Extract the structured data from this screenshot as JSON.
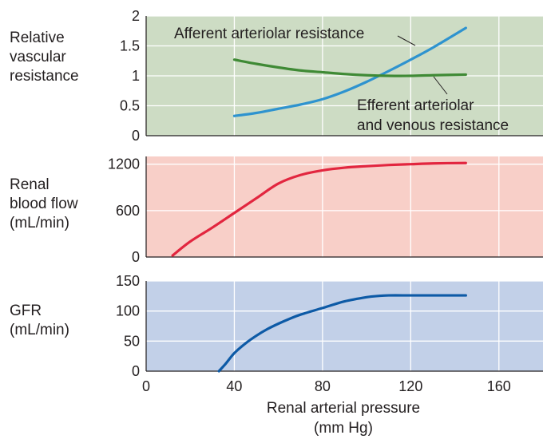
{
  "chart_data": [
    {
      "type": "line",
      "ylabel": [
        "Relative",
        "vascular",
        "resistance"
      ],
      "ylim": [
        0,
        2
      ],
      "yticks": [
        "0",
        "0.5",
        "1",
        "1.5",
        "2"
      ],
      "xlim": [
        0,
        180
      ],
      "background": "#cddcc4",
      "grid": true,
      "series": [
        {
          "name": "Afferent arteriolar resistance",
          "color": "#2e93cf",
          "x": [
            40,
            50,
            60,
            70,
            80,
            90,
            100,
            110,
            120,
            130,
            145
          ],
          "y": [
            0.33,
            0.38,
            0.45,
            0.52,
            0.61,
            0.74,
            0.9,
            1.08,
            1.27,
            1.47,
            1.8
          ]
        },
        {
          "name": "Efferent arteriolar and venous resistance",
          "color": "#3f8a35",
          "x": [
            40,
            50,
            60,
            70,
            80,
            90,
            100,
            110,
            120,
            130,
            145
          ],
          "y": [
            1.27,
            1.2,
            1.14,
            1.09,
            1.06,
            1.03,
            1.01,
            1.0,
            1.0,
            1.01,
            1.02
          ]
        }
      ],
      "annotations": [
        {
          "text": [
            "Afferent arteriolar resistance"
          ],
          "target_series": 0
        },
        {
          "text": [
            "Efferent arteriolar",
            "and venous resistance"
          ],
          "target_series": 1
        }
      ]
    },
    {
      "type": "line",
      "ylabel": [
        "Renal",
        "blood flow",
        "(mL/min)"
      ],
      "ylim": [
        0,
        1300
      ],
      "yticks": [
        "0",
        "600",
        "1200"
      ],
      "ytick_values": [
        0,
        600,
        1200
      ],
      "xlim": [
        0,
        180
      ],
      "background": "#f8cfc8",
      "grid": true,
      "series": [
        {
          "name": "",
          "color": "#e2263f",
          "x": [
            12,
            20,
            30,
            40,
            50,
            60,
            70,
            80,
            90,
            100,
            110,
            120,
            130,
            145
          ],
          "y": [
            20,
            200,
            380,
            570,
            760,
            950,
            1060,
            1120,
            1155,
            1175,
            1190,
            1200,
            1210,
            1215
          ]
        }
      ]
    },
    {
      "type": "line",
      "ylabel": [
        "GFR",
        "(mL/min)"
      ],
      "ylim": [
        0,
        150
      ],
      "yticks": [
        "0",
        "50",
        "100",
        "150"
      ],
      "ytick_values": [
        0,
        50,
        100,
        150
      ],
      "xlim": [
        0,
        180
      ],
      "xticks": [
        "0",
        "40",
        "80",
        "120",
        "160"
      ],
      "xtick_values": [
        0,
        40,
        80,
        120,
        160
      ],
      "xlabel": [
        "Renal arterial pressure",
        "(mm Hg)"
      ],
      "background": "#c2d0e8",
      "grid": true,
      "series": [
        {
          "name": "",
          "color": "#0d5aa6",
          "x": [
            33,
            36,
            40,
            45,
            50,
            55,
            60,
            65,
            70,
            80,
            90,
            100,
            105,
            110,
            120,
            130,
            145
          ],
          "y": [
            0,
            12,
            30,
            46,
            59,
            70,
            79,
            87,
            94,
            105,
            116,
            123,
            125,
            126,
            126,
            126,
            126
          ]
        }
      ]
    }
  ]
}
